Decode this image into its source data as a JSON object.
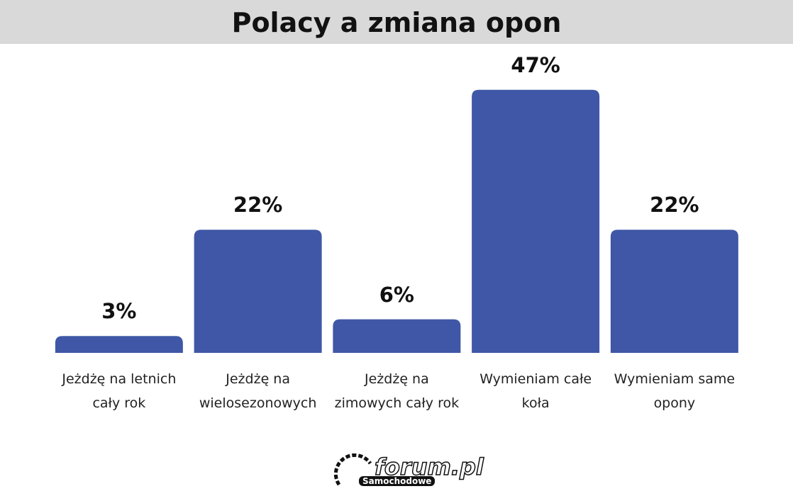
{
  "chart_data": {
    "type": "bar",
    "title": "Polacy a zmiana opon",
    "categories": [
      "Jeżdżę na letnich cały rok",
      "Jeżdżę na wielosezonowych",
      "Jeżdżę na zimowych cały rok",
      "Wymieniam całe koła",
      "Wymieniam same opony"
    ],
    "values": [
      3,
      22,
      6,
      47,
      22
    ],
    "value_labels": [
      "3%",
      "22%",
      "6%",
      "47%",
      "22%"
    ],
    "color": "#3f57a6"
  },
  "logo": {
    "text": "forum.pl",
    "subtext": "Samochodowe"
  }
}
